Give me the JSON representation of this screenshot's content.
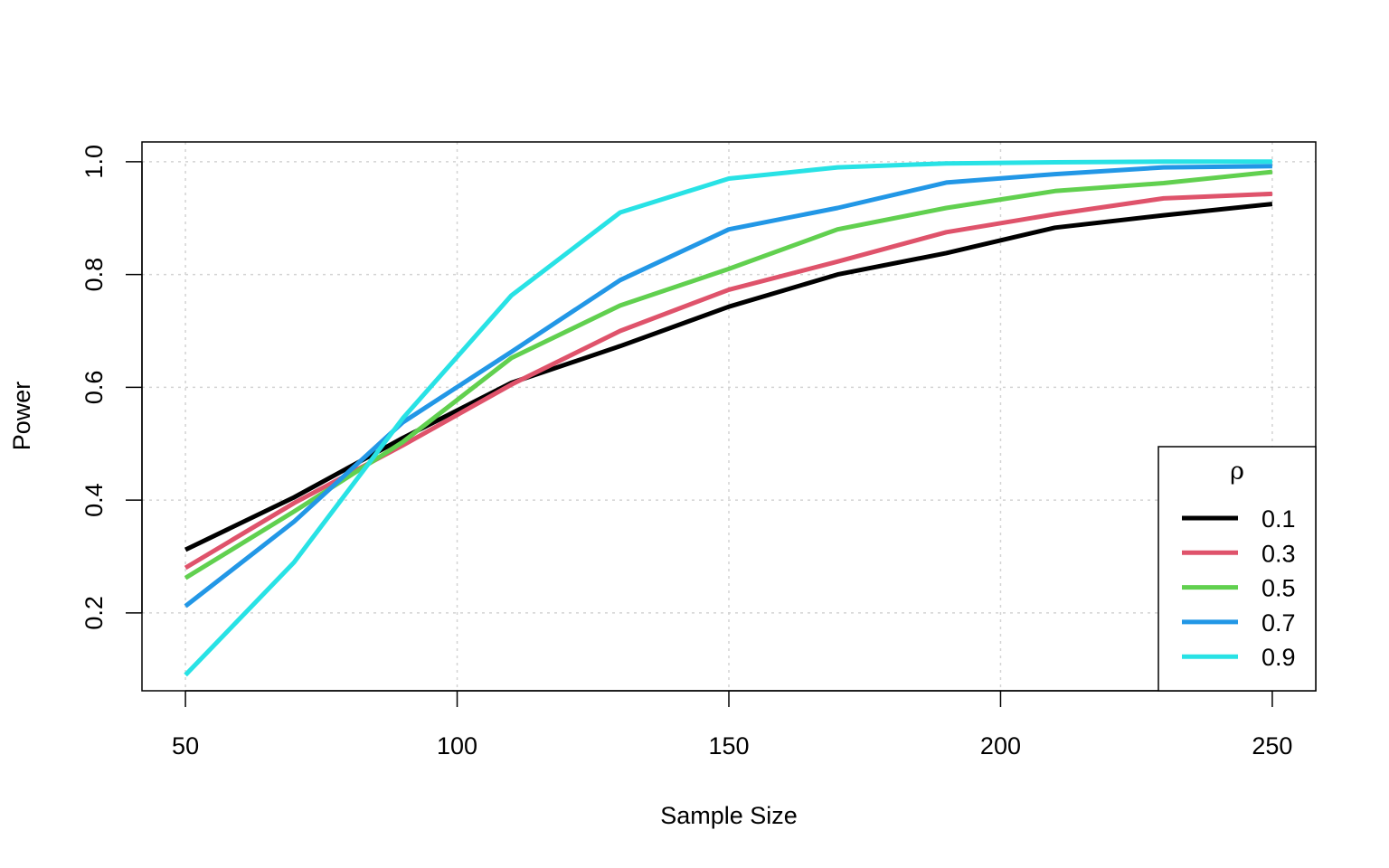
{
  "chart_data": {
    "type": "line",
    "title": "",
    "xlabel": "Sample Size",
    "ylabel": "Power",
    "xlim": [
      42,
      258
    ],
    "ylim": [
      0.062,
      1.035
    ],
    "x_ticks": [
      50,
      100,
      150,
      200,
      250
    ],
    "y_ticks": [
      0.2,
      0.4,
      0.6,
      0.8,
      1.0
    ],
    "x_tick_labels": [
      "50",
      "100",
      "150",
      "200",
      "250"
    ],
    "y_tick_labels": [
      "0.2",
      "0.4",
      "0.6",
      "0.8",
      "1.0"
    ],
    "grid": true,
    "legend": {
      "title": "ρ",
      "position": "bottom-right"
    },
    "x": [
      50,
      70,
      90,
      110,
      130,
      150,
      170,
      190,
      210,
      230,
      250
    ],
    "series": [
      {
        "name": "0.1",
        "color": "#000000",
        "values": [
          0.312,
          0.405,
          0.51,
          0.608,
          0.673,
          0.743,
          0.8,
          0.838,
          0.883,
          0.905,
          0.925
        ]
      },
      {
        "name": "0.3",
        "color": "#DF536B",
        "values": [
          0.28,
          0.395,
          0.497,
          0.605,
          0.7,
          0.773,
          0.823,
          0.875,
          0.907,
          0.935,
          0.943
        ]
      },
      {
        "name": "0.5",
        "color": "#61D04F",
        "values": [
          0.262,
          0.38,
          0.503,
          0.652,
          0.745,
          0.81,
          0.88,
          0.918,
          0.948,
          0.962,
          0.982
        ]
      },
      {
        "name": "0.7",
        "color": "#2297E6",
        "values": [
          0.212,
          0.362,
          0.538,
          0.663,
          0.79,
          0.88,
          0.918,
          0.963,
          0.978,
          0.99,
          0.992
        ]
      },
      {
        "name": "0.9",
        "color": "#28E2E5",
        "values": [
          0.09,
          0.29,
          0.545,
          0.763,
          0.91,
          0.97,
          0.99,
          0.997,
          0.999,
          1.0,
          1.0
        ]
      }
    ]
  }
}
